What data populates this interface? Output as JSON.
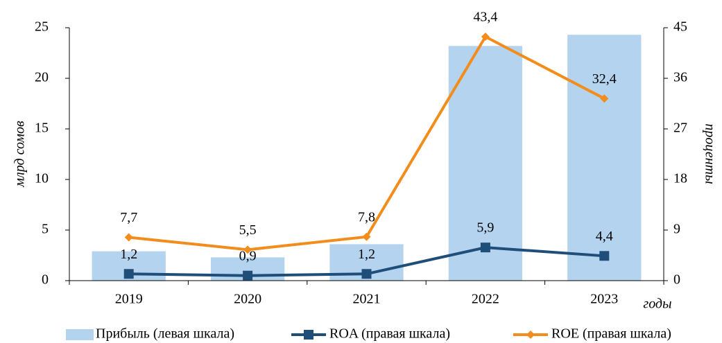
{
  "chart_data": {
    "type": "bar-line",
    "categories": [
      "2019",
      "2020",
      "2021",
      "2022",
      "2023"
    ],
    "xlabel": "годы",
    "ylabel": "млрд сомов",
    "y2label": "проценты",
    "ylim": [
      0,
      25
    ],
    "yticks": [
      0,
      5,
      10,
      15,
      20,
      25
    ],
    "y2lim": [
      0,
      45
    ],
    "y2ticks": [
      0,
      9,
      18,
      27,
      36,
      45
    ],
    "series": [
      {
        "name": "Прибыль (левая шкала)",
        "type": "bar",
        "color": "#b4d3ef",
        "values": [
          2.9,
          2.3,
          3.6,
          23.2,
          24.3
        ]
      },
      {
        "name": "ROA (правая шкала)",
        "type": "line",
        "marker": "square",
        "axis": "y2",
        "color": "#1f4e79",
        "values": [
          1.2,
          0.9,
          1.2,
          5.9,
          4.4
        ],
        "value_labels": [
          "1,2",
          "0,9",
          "1,2",
          "5,9",
          "4,4"
        ]
      },
      {
        "name": "ROE (правая шкала)",
        "type": "line",
        "marker": "diamond",
        "axis": "y2",
        "color": "#f28c1b",
        "values": [
          7.7,
          5.5,
          7.8,
          43.4,
          32.4
        ],
        "value_labels": [
          "7,7",
          "5,5",
          "7,8",
          "43,4",
          "32,4"
        ]
      }
    ]
  }
}
